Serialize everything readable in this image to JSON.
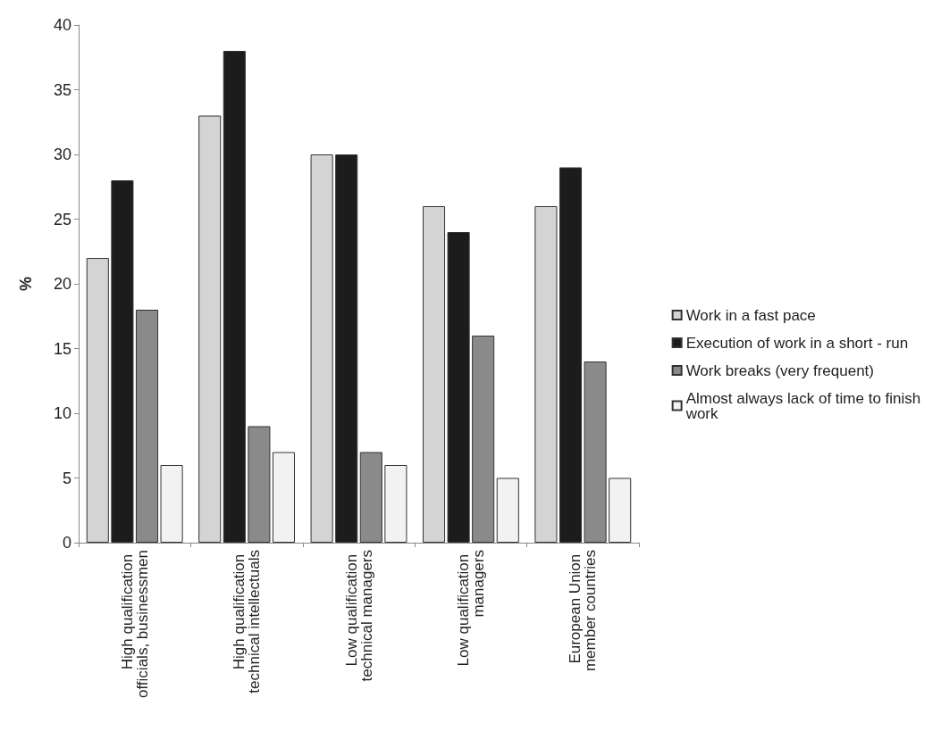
{
  "chart_data": {
    "type": "bar",
    "ylabel": "%",
    "categories": [
      "High qualification officials, businessmen",
      "High qualification technical intellectuals",
      "Low qualification technical managers",
      "Low qualification managers",
      "European Union member countries"
    ],
    "series": [
      {
        "name": "Work in a fast pace",
        "color": "#d4d4d4",
        "values": [
          22,
          33,
          30,
          26,
          26
        ]
      },
      {
        "name": "Execution of work in a short - run",
        "color": "#1c1c1c",
        "values": [
          28,
          38,
          30,
          24,
          29
        ]
      },
      {
        "name": "Work breaks (very frequent)",
        "color": "#8a8a8a",
        "values": [
          18,
          9,
          7,
          16,
          14
        ]
      },
      {
        "name": "Almost always lack of time to finish work",
        "color": "#f2f2f2",
        "values": [
          6,
          7,
          6,
          5,
          5
        ]
      }
    ],
    "ylim": [
      0,
      40
    ],
    "yticks": [
      0,
      5,
      10,
      15,
      20,
      25,
      30,
      35,
      40
    ],
    "grid": false,
    "legend": "right"
  }
}
